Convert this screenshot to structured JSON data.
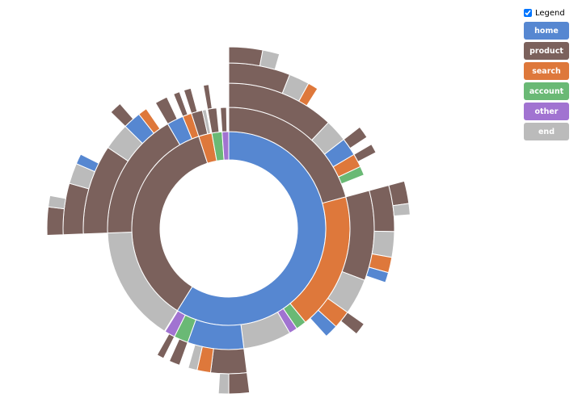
{
  "chart_data": {
    "type": "sunburst",
    "legend_title": "Legend",
    "categories": [
      "home",
      "product",
      "search",
      "account",
      "other",
      "end"
    ],
    "colors": [
      "#5687d1",
      "#7b615c",
      "#de783b",
      "#6ab975",
      "#a173d1",
      "#bbbbbb"
    ],
    "tree": [
      {
        "name": "home",
        "value": 58.9,
        "children": [
          {
            "name": "product",
            "value": 20.8,
            "children": [
              {
                "name": "product",
                "value": 12,
                "children": [
                  {
                    "name": "product",
                    "value": 6,
                    "children": [
                      {
                        "name": "product",
                        "value": 3
                      },
                      {
                        "name": "end",
                        "value": 1.5
                      }
                    ]
                  },
                  {
                    "name": "end",
                    "value": 2
                  },
                  {
                    "name": "search",
                    "value": 1
                  }
                ]
              },
              {
                "name": "end",
                "value": 2.5
              },
              {
                "name": "home",
                "value": 2,
                "children": [
                  {
                    "name": "product",
                    "value": 1.2
                  }
                ]
              },
              {
                "name": "search",
                "value": 1.5,
                "children": [
                  {
                    "name": "product",
                    "value": 0.9
                  }
                ]
              },
              {
                "name": "account",
                "value": 1
              }
            ]
          },
          {
            "name": "search",
            "value": 18.3,
            "children": [
              {
                "name": "product",
                "value": 10,
                "children": [
                  {
                    "name": "product",
                    "value": 4.5,
                    "children": [
                      {
                        "name": "product",
                        "value": 2
                      },
                      {
                        "name": "end",
                        "value": 1
                      }
                    ]
                  },
                  {
                    "name": "end",
                    "value": 2.5
                  },
                  {
                    "name": "search",
                    "value": 1.5
                  },
                  {
                    "name": "home",
                    "value": 1
                  }
                ]
              },
              {
                "name": "end",
                "value": 4
              },
              {
                "name": "search",
                "value": 2,
                "children": [
                  {
                    "name": "product",
                    "value": 1.2
                  }
                ]
              },
              {
                "name": "home",
                "value": 1.5
              }
            ]
          },
          {
            "name": "account",
            "value": 1.4
          },
          {
            "name": "other",
            "value": 1.1
          },
          {
            "name": "end",
            "value": 6.4
          },
          {
            "name": "home",
            "value": 7.5,
            "children": [
              {
                "name": "product",
                "value": 4,
                "children": [
                  {
                    "name": "product",
                    "value": 2
                  },
                  {
                    "name": "end",
                    "value": 1
                  }
                ]
              },
              {
                "name": "search",
                "value": 1.5
              },
              {
                "name": "end",
                "value": 1
              }
            ]
          },
          {
            "name": "account",
            "value": 1.9,
            "children": [
              {
                "name": "product",
                "value": 1.2
              }
            ]
          },
          {
            "name": "other",
            "value": 1.4,
            "children": [
              {
                "name": "product",
                "value": 0.8
              }
            ]
          }
        ]
      },
      {
        "name": "product",
        "value": 36.1,
        "children": [
          {
            "name": "end",
            "value": 15.5
          },
          {
            "name": "product",
            "value": 17.2,
            "children": [
              {
                "name": "product",
                "value": 10,
                "children": [
                  {
                    "name": "product",
                    "value": 5,
                    "children": [
                      {
                        "name": "product",
                        "value": 2.5
                      },
                      {
                        "name": "end",
                        "value": 1
                      }
                    ]
                  },
                  {
                    "name": "end",
                    "value": 2
                  },
                  {
                    "name": "home",
                    "value": 1
                  }
                ]
              },
              {
                "name": "end",
                "value": 3
              },
              {
                "name": "home",
                "value": 2,
                "children": [
                  {
                    "name": "product",
                    "value": 1.2
                  }
                ]
              },
              {
                "name": "search",
                "value": 1
              }
            ]
          },
          {
            "name": "home",
            "value": 2.2,
            "children": [
              {
                "name": "product",
                "value": 1.4
              }
            ]
          },
          {
            "name": "search",
            "value": 1.2,
            "children": [
              {
                "name": "product",
                "value": 0.7
              }
            ]
          }
        ]
      },
      {
        "name": "search",
        "value": 2.2,
        "children": [
          {
            "name": "product",
            "value": 1.5,
            "children": [
              {
                "name": "product",
                "value": 0.8
              }
            ]
          },
          {
            "name": "end",
            "value": 0.5
          }
        ]
      },
      {
        "name": "account",
        "value": 1.7,
        "children": [
          {
            "name": "product",
            "value": 1.2,
            "children": [
              {
                "name": "product",
                "value": 0.6
              }
            ]
          }
        ]
      },
      {
        "name": "other",
        "value": 1.1,
        "children": [
          {
            "name": "product",
            "value": 0.8
          }
        ]
      }
    ]
  }
}
